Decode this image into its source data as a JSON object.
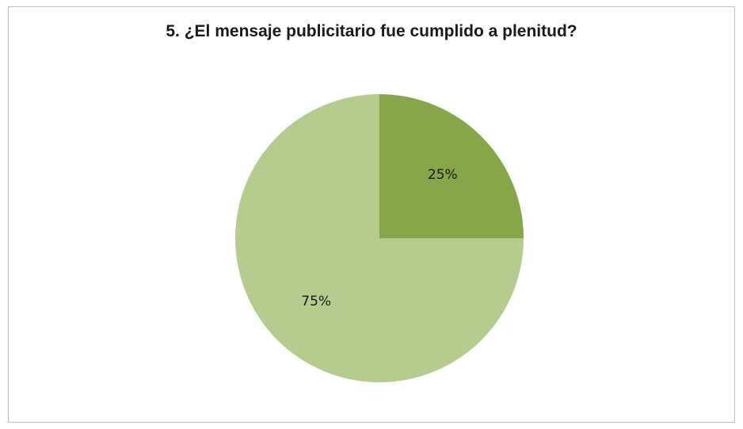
{
  "chart_data": {
    "type": "pie",
    "title": "5. ¿El mensaje publicitario fue cumplido a plenitud?",
    "slices": [
      {
        "value": 25,
        "label": "25%",
        "color": "#87a64a"
      },
      {
        "value": 75,
        "label": "75%",
        "color": "#b5cc8e"
      }
    ],
    "legend": "none"
  }
}
